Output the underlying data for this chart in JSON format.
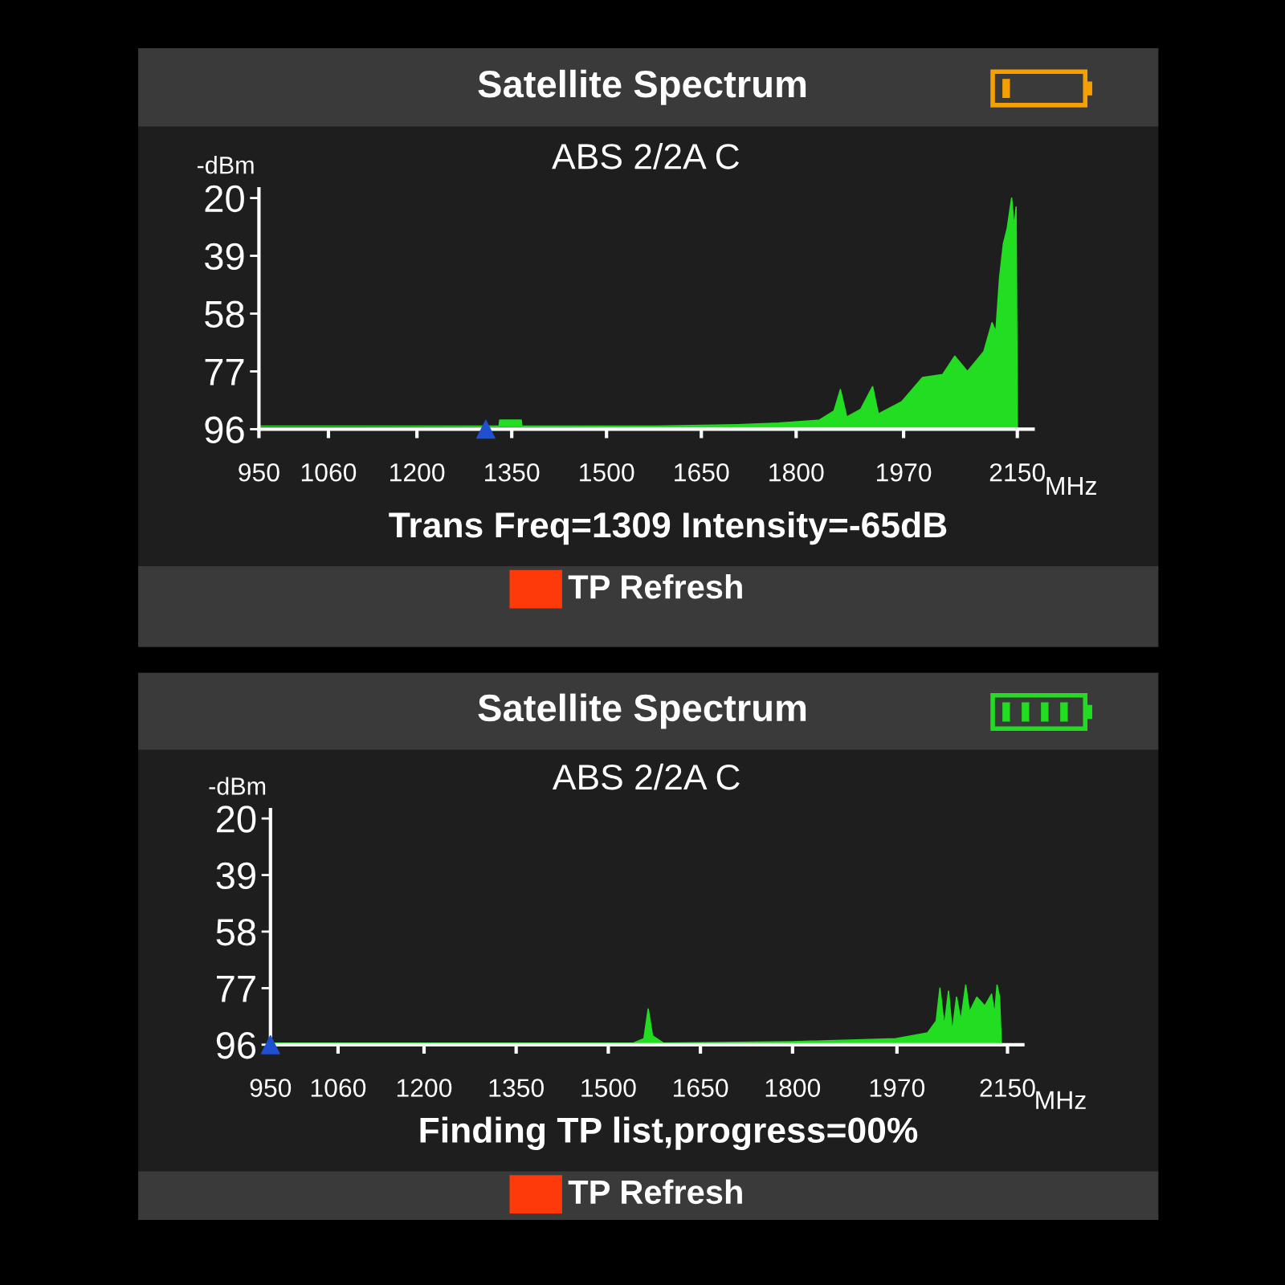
{
  "chart_data": [
    {
      "type": "area",
      "title": "Satellite Spectrum",
      "subtitle": "ABS 2/2A C",
      "ylabel": "-dBm",
      "xlabel": "MHz",
      "xlim": [
        950,
        2175
      ],
      "xticks": [
        950,
        1060,
        1200,
        1350,
        1500,
        1650,
        1800,
        1970,
        2150
      ],
      "ylim": [
        96,
        17
      ],
      "yticks": [
        20,
        39,
        58,
        77,
        96
      ],
      "grid": false,
      "series": [
        {
          "type": "area",
          "color": "#22dd22",
          "x": [
            950,
            1100,
            1330,
            1331,
            1365,
            1366,
            1578,
            1707,
            1772,
            1837,
            1860,
            1870,
            1880,
            1902,
            1921,
            1930,
            1967,
            2000,
            2032,
            2051,
            2071,
            2097,
            2110,
            2116,
            2122,
            2128,
            2134,
            2141,
            2145,
            2148,
            2150
          ],
          "values": [
            95,
            95,
            95,
            93,
            93,
            95,
            95,
            94.5,
            94,
            93,
            90,
            83,
            92,
            89.5,
            82,
            91,
            87,
            79,
            78,
            72,
            77,
            70.5,
            61,
            64,
            46,
            35,
            30,
            20,
            30,
            23,
            96
          ]
        },
        {
          "type": "scatter",
          "color": "#1e50d0",
          "marker": "triangle",
          "x": [
            1309
          ],
          "values": [
            96
          ]
        }
      ],
      "annotations": [
        "Trans Freq=1309 Intensity=-65dB",
        "TP Refresh"
      ]
    },
    {
      "type": "area",
      "title": "Satellite Spectrum",
      "subtitle": "ABS 2/2A C",
      "ylabel": "-dBm",
      "xlabel": "MHz",
      "xlim": [
        950,
        2175
      ],
      "xticks": [
        950,
        1060,
        1200,
        1350,
        1500,
        1650,
        1800,
        1970,
        2150
      ],
      "ylim": [
        96,
        17
      ],
      "yticks": [
        20,
        39,
        58,
        77,
        96
      ],
      "grid": false,
      "series": [
        {
          "type": "area",
          "color": "#22dd22",
          "x": [
            950,
            1540,
            1558,
            1565,
            1572,
            1590,
            1800,
            1968,
            2020,
            2034,
            2040,
            2047,
            2054,
            2060,
            2067,
            2074,
            2082,
            2088,
            2100,
            2113,
            2124,
            2129,
            2133,
            2137,
            2140
          ],
          "values": [
            95.5,
            95.5,
            94,
            84,
            93,
            95.5,
            95,
            94,
            92,
            88,
            77,
            90,
            78,
            92,
            80,
            88,
            76,
            85,
            80,
            83,
            79,
            86,
            76,
            80,
            96
          ]
        },
        {
          "type": "scatter",
          "color": "#1e50d0",
          "marker": "triangle",
          "x": [
            950
          ],
          "values": [
            96
          ]
        }
      ],
      "annotations": [
        "Finding TP list,progress=00%",
        "TP Refresh"
      ]
    }
  ]
}
